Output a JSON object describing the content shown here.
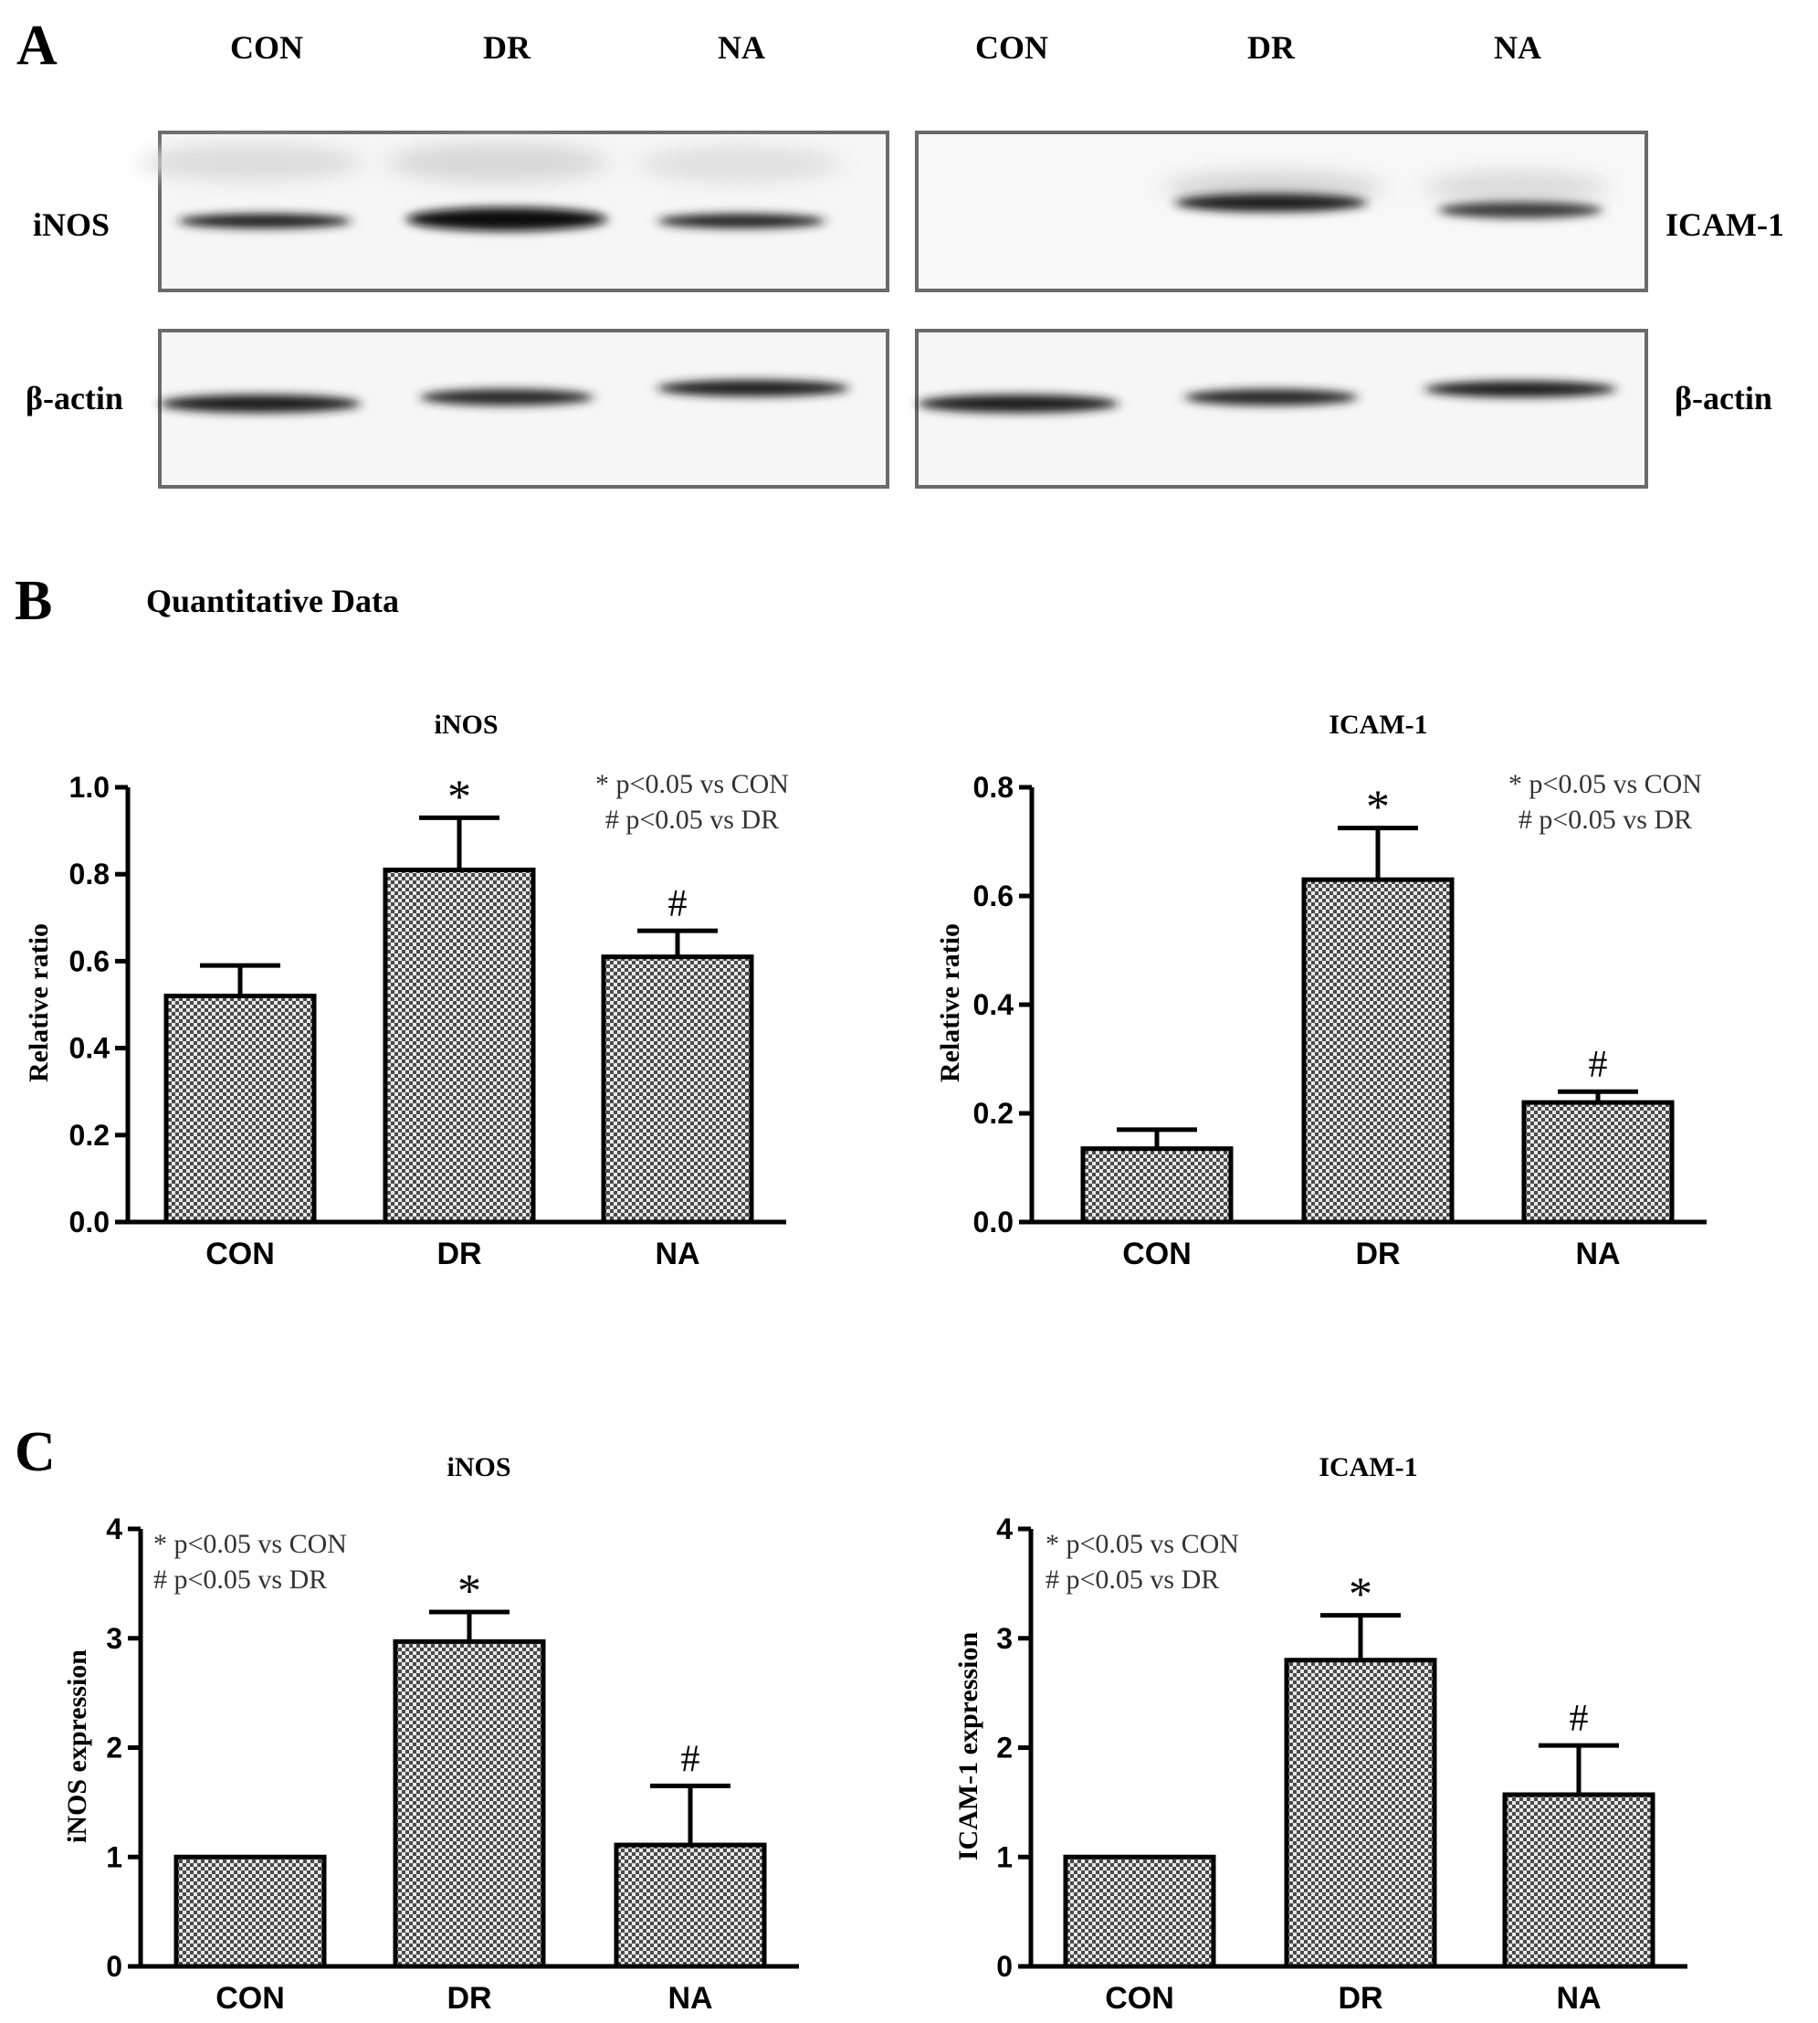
{
  "panel_letters": {
    "a": "A",
    "b": "B",
    "c": "C"
  },
  "section_b_title": "Quantitative Data",
  "blot": {
    "lanes": [
      "CON",
      "DR",
      "NA",
      "CON",
      "DR",
      "NA"
    ],
    "left_labels": [
      "iNOS",
      "β-actin"
    ],
    "right_labels": [
      "ICAM-1",
      "β-actin"
    ]
  },
  "chart_data": [
    {
      "type": "bar",
      "title": "iNOS",
      "ylabel": "Relative ratio",
      "xlabel": "",
      "categories": [
        "CON",
        "DR",
        "NA"
      ],
      "values": [
        0.52,
        0.81,
        0.61
      ],
      "errors": [
        0.07,
        0.12,
        0.06
      ],
      "markers": [
        "",
        "*",
        "#"
      ],
      "ylim": [
        0,
        1.0
      ],
      "yticks": [
        "0.0",
        "0.2",
        "0.4",
        "0.6",
        "0.8",
        "1.0"
      ],
      "legend_lines": [
        "* p<0.05 vs CON",
        "# p<0.05 vs DR"
      ],
      "legend_position": "top-right"
    },
    {
      "type": "bar",
      "title": "ICAM-1",
      "ylabel": "Relative ratio",
      "xlabel": "",
      "categories": [
        "CON",
        "DR",
        "NA"
      ],
      "values": [
        0.135,
        0.63,
        0.22
      ],
      "errors": [
        0.035,
        0.095,
        0.02
      ],
      "markers": [
        "",
        "*",
        "#"
      ],
      "ylim": [
        0,
        0.8
      ],
      "yticks": [
        "0.0",
        "0.2",
        "0.4",
        "0.6",
        "0.8"
      ],
      "legend_lines": [
        "* p<0.05 vs CON",
        "# p<0.05 vs DR"
      ],
      "legend_position": "top-right"
    },
    {
      "type": "bar",
      "title": "iNOS",
      "ylabel": "iNOS expression",
      "xlabel": "",
      "categories": [
        "CON",
        "DR",
        "NA"
      ],
      "values": [
        1.0,
        2.97,
        1.11
      ],
      "errors": [
        0,
        0.27,
        0.54
      ],
      "markers": [
        "",
        "*",
        "#"
      ],
      "ylim": [
        0,
        4
      ],
      "yticks": [
        "0",
        "1",
        "2",
        "3",
        "4"
      ],
      "legend_lines": [
        "* p<0.05 vs CON",
        "# p<0.05 vs DR"
      ],
      "legend_position": "top-left"
    },
    {
      "type": "bar",
      "title": "ICAM-1",
      "ylabel": "ICAM-1 expression",
      "xlabel": "",
      "categories": [
        "CON",
        "DR",
        "NA"
      ],
      "values": [
        1.0,
        2.8,
        1.57
      ],
      "errors": [
        0,
        0.41,
        0.45
      ],
      "markers": [
        "",
        "*",
        "#"
      ],
      "ylim": [
        0,
        4
      ],
      "yticks": [
        "0",
        "1",
        "2",
        "3",
        "4"
      ],
      "legend_lines": [
        "* p<0.05 vs CON",
        "# p<0.05 vs DR"
      ],
      "legend_position": "top-left"
    }
  ]
}
